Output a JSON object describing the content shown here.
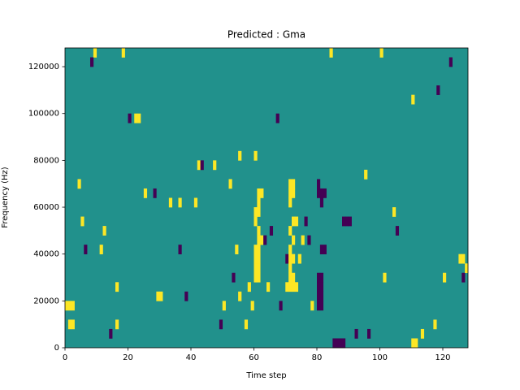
{
  "chart_data": {
    "type": "heatmap",
    "title": "Predicted : Gma",
    "x_label": "Time step",
    "y_label": "Frequency (Hz)",
    "xlim": [
      0,
      128
    ],
    "ylim": [
      0,
      128000
    ],
    "xticks": [
      0,
      20,
      40,
      60,
      80,
      100,
      120
    ],
    "yticks": [
      0,
      20000,
      40000,
      60000,
      80000,
      100000,
      120000
    ],
    "cell_width": 1,
    "cell_height": 4000,
    "colors": [
      "#440154",
      "#21918c",
      "#fde725"
    ],
    "fill_value": 1,
    "cells": [
      [
        0,
        16000,
        2
      ],
      [
        1,
        16000,
        2
      ],
      [
        2,
        16000,
        2
      ],
      [
        1,
        8000,
        2
      ],
      [
        2,
        8000,
        2
      ],
      [
        5,
        52000,
        2
      ],
      [
        6,
        40000,
        0
      ],
      [
        4,
        68000,
        2
      ],
      [
        9,
        124000,
        2
      ],
      [
        8,
        120000,
        0
      ],
      [
        11,
        40000,
        2
      ],
      [
        12,
        48000,
        2
      ],
      [
        14,
        4000,
        0
      ],
      [
        16,
        24000,
        2
      ],
      [
        16,
        8000,
        2
      ],
      [
        18,
        124000,
        2
      ],
      [
        20,
        96000,
        0
      ],
      [
        22,
        96000,
        2
      ],
      [
        23,
        96000,
        2
      ],
      [
        25,
        64000,
        2
      ],
      [
        28,
        64000,
        0
      ],
      [
        29,
        20000,
        2
      ],
      [
        30,
        20000,
        2
      ],
      [
        33,
        60000,
        2
      ],
      [
        36,
        40000,
        0
      ],
      [
        36,
        60000,
        2
      ],
      [
        38,
        20000,
        0
      ],
      [
        41,
        60000,
        2
      ],
      [
        42,
        76000,
        2
      ],
      [
        43,
        76000,
        0
      ],
      [
        47,
        76000,
        2
      ],
      [
        49,
        8000,
        0
      ],
      [
        50,
        16000,
        2
      ],
      [
        52,
        68000,
        2
      ],
      [
        53,
        28000,
        0
      ],
      [
        54,
        40000,
        2
      ],
      [
        55,
        20000,
        2
      ],
      [
        57,
        8000,
        2
      ],
      [
        58,
        24000,
        2
      ],
      [
        59,
        16000,
        2
      ],
      [
        60,
        28000,
        2
      ],
      [
        60,
        32000,
        2
      ],
      [
        60,
        36000,
        2
      ],
      [
        60,
        40000,
        2
      ],
      [
        60,
        52000,
        2
      ],
      [
        60,
        56000,
        2
      ],
      [
        61,
        28000,
        2
      ],
      [
        61,
        32000,
        2
      ],
      [
        61,
        36000,
        2
      ],
      [
        61,
        40000,
        2
      ],
      [
        61,
        44000,
        2
      ],
      [
        61,
        48000,
        2
      ],
      [
        61,
        56000,
        2
      ],
      [
        61,
        60000,
        2
      ],
      [
        61,
        64000,
        2
      ],
      [
        62,
        44000,
        2
      ],
      [
        62,
        64000,
        2
      ],
      [
        63,
        44000,
        0
      ],
      [
        64,
        24000,
        2
      ],
      [
        65,
        48000,
        0
      ],
      [
        68,
        16000,
        0
      ],
      [
        70,
        36000,
        0
      ],
      [
        70,
        24000,
        2
      ],
      [
        71,
        24000,
        2
      ],
      [
        71,
        28000,
        2
      ],
      [
        71,
        32000,
        2
      ],
      [
        71,
        36000,
        2
      ],
      [
        71,
        40000,
        2
      ],
      [
        71,
        48000,
        2
      ],
      [
        71,
        60000,
        2
      ],
      [
        71,
        64000,
        2
      ],
      [
        71,
        68000,
        2
      ],
      [
        72,
        24000,
        2
      ],
      [
        72,
        28000,
        2
      ],
      [
        72,
        36000,
        2
      ],
      [
        72,
        44000,
        2
      ],
      [
        72,
        52000,
        2
      ],
      [
        72,
        64000,
        2
      ],
      [
        72,
        68000,
        2
      ],
      [
        73,
        24000,
        2
      ],
      [
        73,
        52000,
        2
      ],
      [
        74,
        36000,
        2
      ],
      [
        75,
        44000,
        2
      ],
      [
        76,
        52000,
        0
      ],
      [
        77,
        44000,
        0
      ],
      [
        78,
        16000,
        2
      ],
      [
        80,
        16000,
        0
      ],
      [
        80,
        20000,
        0
      ],
      [
        80,
        24000,
        0
      ],
      [
        80,
        28000,
        0
      ],
      [
        80,
        64000,
        0
      ],
      [
        80,
        68000,
        0
      ],
      [
        81,
        16000,
        0
      ],
      [
        81,
        20000,
        0
      ],
      [
        81,
        24000,
        0
      ],
      [
        81,
        28000,
        0
      ],
      [
        81,
        40000,
        0
      ],
      [
        81,
        60000,
        0
      ],
      [
        81,
        64000,
        0
      ],
      [
        82,
        40000,
        0
      ],
      [
        82,
        64000,
        0
      ],
      [
        85,
        0,
        0
      ],
      [
        86,
        0,
        0
      ],
      [
        87,
        0,
        0
      ],
      [
        88,
        0,
        0
      ],
      [
        88,
        52000,
        0
      ],
      [
        89,
        52000,
        0
      ],
      [
        90,
        52000,
        0
      ],
      [
        92,
        4000,
        0
      ],
      [
        96,
        4000,
        0
      ],
      [
        101,
        28000,
        2
      ],
      [
        105,
        48000,
        0
      ],
      [
        110,
        0,
        2
      ],
      [
        111,
        0,
        2
      ],
      [
        113,
        4000,
        2
      ],
      [
        117,
        8000,
        2
      ],
      [
        120,
        28000,
        2
      ],
      [
        125,
        36000,
        2
      ],
      [
        126,
        36000,
        2
      ],
      [
        126,
        28000,
        0
      ],
      [
        127,
        32000,
        2
      ],
      [
        84,
        124000,
        2
      ],
      [
        100,
        124000,
        2
      ],
      [
        110,
        104000,
        2
      ],
      [
        67,
        96000,
        0
      ],
      [
        60,
        80000,
        2
      ],
      [
        55,
        80000,
        2
      ],
      [
        95,
        72000,
        2
      ],
      [
        104,
        56000,
        2
      ],
      [
        118,
        108000,
        0
      ],
      [
        122,
        120000,
        0
      ]
    ]
  }
}
